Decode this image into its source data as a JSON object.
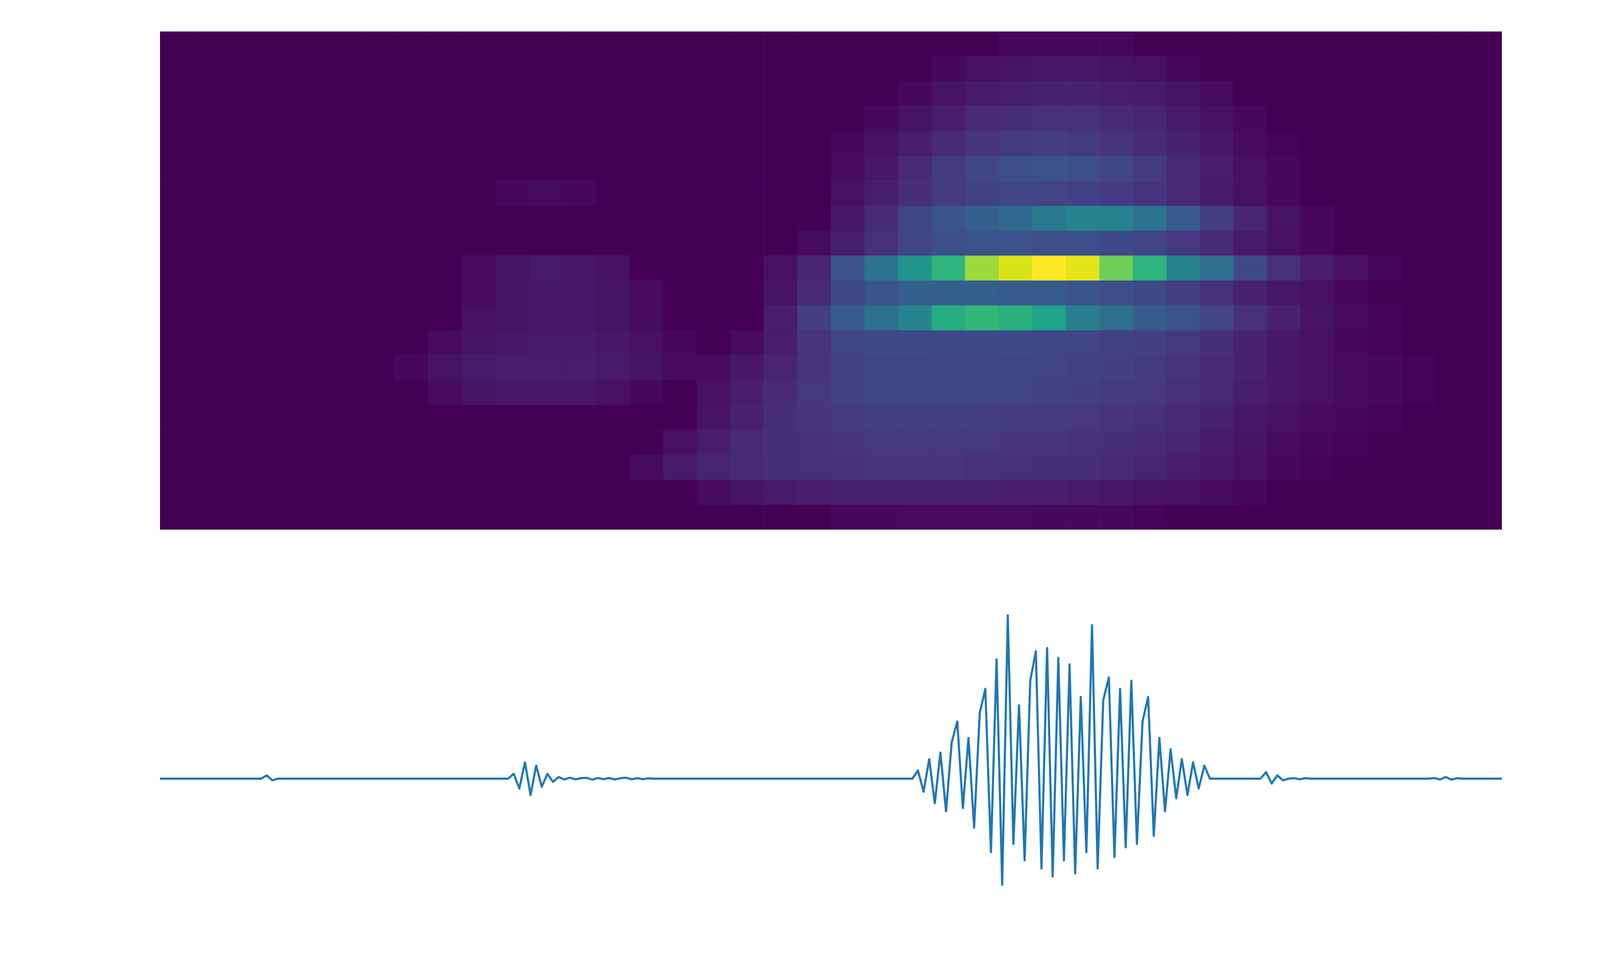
{
  "chart_data": [
    {
      "type": "heatmap",
      "tick_labels": false,
      "zlim": [
        0,
        100
      ],
      "z": [
        [
          0,
          0,
          0,
          0,
          0,
          0,
          0,
          0,
          0,
          0,
          0,
          0,
          0,
          0,
          0,
          0,
          0,
          0,
          0,
          0,
          0,
          0,
          0,
          0,
          0,
          2,
          2,
          2,
          2,
          0,
          0,
          0,
          0,
          0,
          0,
          0,
          0,
          0,
          0,
          0
        ],
        [
          0,
          0,
          0,
          0,
          0,
          0,
          0,
          0,
          0,
          0,
          0,
          0,
          0,
          0,
          0,
          0,
          0,
          0,
          0,
          0,
          0,
          0,
          0,
          2,
          4,
          5,
          6,
          6,
          5,
          4,
          2,
          0,
          0,
          0,
          0,
          0,
          0,
          0,
          0,
          0
        ],
        [
          0,
          0,
          0,
          0,
          0,
          0,
          0,
          0,
          0,
          0,
          0,
          0,
          0,
          0,
          0,
          0,
          0,
          0,
          0,
          0,
          0,
          0,
          2,
          5,
          7,
          8,
          9,
          9,
          8,
          7,
          5,
          3,
          0,
          0,
          0,
          0,
          0,
          0,
          0,
          0
        ],
        [
          0,
          0,
          0,
          0,
          0,
          0,
          0,
          0,
          0,
          0,
          0,
          0,
          0,
          0,
          0,
          0,
          0,
          0,
          0,
          0,
          0,
          2,
          5,
          8,
          11,
          13,
          14,
          14,
          12,
          10,
          7,
          4,
          2,
          0,
          0,
          0,
          0,
          0,
          0,
          0
        ],
        [
          0,
          0,
          0,
          0,
          0,
          0,
          0,
          0,
          0,
          0,
          0,
          0,
          0,
          0,
          0,
          0,
          0,
          0,
          0,
          0,
          2,
          4,
          8,
          12,
          15,
          17,
          18,
          17,
          15,
          12,
          9,
          6,
          3,
          1,
          0,
          0,
          0,
          0,
          0,
          0
        ],
        [
          0,
          0,
          0,
          0,
          0,
          0,
          0,
          0,
          0,
          0,
          0,
          0,
          0,
          0,
          0,
          0,
          0,
          0,
          0,
          0,
          3,
          6,
          12,
          17,
          21,
          24,
          25,
          24,
          21,
          17,
          12,
          8,
          4,
          2,
          0,
          0,
          0,
          0,
          0,
          0
        ],
        [
          0,
          0,
          0,
          0,
          0,
          0,
          0,
          0,
          0,
          0,
          2,
          3,
          2,
          0,
          0,
          0,
          0,
          0,
          0,
          0,
          4,
          8,
          13,
          17,
          19,
          20,
          20,
          19,
          17,
          15,
          11,
          7,
          4,
          2,
          0,
          0,
          0,
          0,
          0,
          0
        ],
        [
          0,
          0,
          0,
          0,
          0,
          0,
          0,
          0,
          0,
          0,
          0,
          0,
          0,
          0,
          0,
          0,
          0,
          0,
          0,
          0,
          6,
          12,
          20,
          26,
          30,
          34,
          40,
          45,
          44,
          38,
          28,
          18,
          10,
          5,
          2,
          0,
          0,
          0,
          0,
          0
        ],
        [
          0,
          0,
          0,
          0,
          0,
          0,
          0,
          0,
          0,
          0,
          0,
          0,
          0,
          0,
          0,
          0,
          0,
          0,
          0,
          3,
          8,
          14,
          20,
          24,
          25,
          25,
          24,
          24,
          22,
          20,
          16,
          11,
          7,
          4,
          2,
          0,
          0,
          0,
          0,
          0
        ],
        [
          0,
          0,
          0,
          0,
          0,
          0,
          0,
          0,
          0,
          3,
          5,
          7,
          6,
          4,
          0,
          0,
          0,
          0,
          4,
          10,
          25,
          38,
          52,
          65,
          85,
          94,
          100,
          96,
          78,
          65,
          45,
          35,
          22,
          14,
          8,
          4,
          2,
          0,
          0,
          0
        ],
        [
          0,
          0,
          0,
          0,
          0,
          0,
          0,
          0,
          0,
          3,
          5,
          6,
          6,
          5,
          3,
          0,
          0,
          0,
          5,
          12,
          20,
          26,
          30,
          30,
          30,
          28,
          28,
          26,
          24,
          22,
          18,
          14,
          9,
          6,
          4,
          2,
          0,
          0,
          0,
          0
        ],
        [
          0,
          0,
          0,
          0,
          0,
          0,
          0,
          0,
          0,
          4,
          5,
          6,
          6,
          5,
          3,
          0,
          0,
          0,
          8,
          18,
          28,
          36,
          45,
          62,
          66,
          64,
          58,
          42,
          36,
          28,
          25,
          20,
          14,
          9,
          5,
          3,
          1,
          0,
          0,
          0
        ],
        [
          0,
          0,
          0,
          0,
          0,
          0,
          0,
          0,
          3,
          5,
          6,
          7,
          7,
          6,
          4,
          2,
          0,
          3,
          8,
          15,
          20,
          22,
          22,
          22,
          22,
          22,
          21,
          20,
          19,
          18,
          16,
          13,
          9,
          6,
          4,
          2,
          1,
          0,
          0,
          0
        ],
        [
          0,
          0,
          0,
          0,
          0,
          0,
          0,
          2,
          5,
          7,
          8,
          8,
          8,
          7,
          5,
          3,
          3,
          6,
          10,
          15,
          19,
          20,
          20,
          21,
          21,
          20,
          20,
          19,
          18,
          17,
          15,
          12,
          9,
          6,
          4,
          3,
          2,
          1,
          0,
          0
        ],
        [
          0,
          0,
          0,
          0,
          0,
          0,
          0,
          0,
          3,
          5,
          6,
          6,
          6,
          4,
          2,
          0,
          4,
          8,
          12,
          16,
          19,
          20,
          20,
          20,
          20,
          20,
          19,
          18,
          17,
          16,
          14,
          11,
          8,
          6,
          4,
          3,
          2,
          1,
          0,
          0
        ],
        [
          0,
          0,
          0,
          0,
          0,
          0,
          0,
          0,
          0,
          0,
          0,
          0,
          0,
          0,
          0,
          0,
          5,
          9,
          13,
          15,
          17,
          18,
          18,
          18,
          18,
          17,
          17,
          16,
          15,
          14,
          12,
          9,
          6,
          4,
          3,
          2,
          1,
          0,
          0,
          0
        ],
        [
          0,
          0,
          0,
          0,
          0,
          0,
          0,
          0,
          0,
          0,
          0,
          0,
          0,
          0,
          0,
          4,
          8,
          11,
          13,
          14,
          15,
          16,
          16,
          16,
          16,
          15,
          15,
          14,
          13,
          12,
          10,
          7,
          5,
          3,
          2,
          1,
          0,
          0,
          0,
          0
        ],
        [
          0,
          0,
          0,
          0,
          0,
          0,
          0,
          0,
          0,
          0,
          0,
          0,
          0,
          0,
          3,
          7,
          10,
          12,
          13,
          14,
          14,
          15,
          15,
          15,
          14,
          14,
          13,
          13,
          12,
          10,
          8,
          6,
          4,
          2,
          1,
          0,
          0,
          0,
          0,
          0
        ],
        [
          0,
          0,
          0,
          0,
          0,
          0,
          0,
          0,
          0,
          0,
          0,
          0,
          0,
          0,
          0,
          0,
          3,
          5,
          7,
          8,
          9,
          9,
          9,
          9,
          9,
          8,
          8,
          7,
          6,
          5,
          4,
          3,
          2,
          0,
          0,
          0,
          0,
          0,
          0,
          0
        ],
        [
          0,
          0,
          0,
          0,
          0,
          0,
          0,
          0,
          0,
          0,
          0,
          0,
          0,
          0,
          0,
          0,
          0,
          0,
          0,
          0,
          2,
          2,
          3,
          3,
          3,
          3,
          2,
          2,
          2,
          1,
          0,
          0,
          0,
          0,
          0,
          0,
          0,
          0,
          0,
          0
        ]
      ]
    },
    {
      "type": "line",
      "tick_labels": false,
      "color": "#1f77b4",
      "xlim": [
        0,
        239
      ],
      "ylim": [
        -1.1,
        1.1
      ],
      "values": [
        0,
        0,
        0,
        0,
        0,
        0,
        0,
        0,
        0,
        0,
        0,
        0,
        0,
        0,
        0,
        0,
        0,
        0,
        0,
        0.02,
        -0.01,
        0,
        0,
        0,
        0,
        0,
        0,
        0,
        0,
        0,
        0,
        0,
        0,
        0,
        0,
        0,
        0,
        0,
        0,
        0,
        0,
        0,
        0,
        0,
        0,
        0,
        0,
        0,
        0,
        0,
        0,
        0,
        0,
        0,
        0,
        0,
        0,
        0,
        0,
        0,
        0,
        0,
        0,
        0.03,
        -0.06,
        0.1,
        -0.1,
        0.08,
        -0.05,
        0.03,
        -0.02,
        0.01,
        -0.005,
        0.006,
        -0.004,
        0.003,
        0.005,
        -0.006,
        0.004,
        -0.003,
        0.004,
        -0.005,
        0.003,
        0.006,
        -0.004,
        0.003,
        -0.003,
        0.002,
        0,
        0,
        0,
        0,
        0,
        0,
        0,
        0,
        0,
        0,
        0,
        0,
        0,
        0,
        0,
        0,
        0,
        0,
        0,
        0,
        0,
        0,
        0,
        0,
        0,
        0,
        0,
        0,
        0,
        0,
        0,
        0,
        0,
        0,
        0,
        0,
        0,
        0,
        0,
        0,
        0,
        0,
        0,
        0,
        0,
        0,
        0,
        0.05,
        -0.08,
        0.12,
        -0.15,
        0.16,
        -0.2,
        0.22,
        0.35,
        -0.18,
        0.25,
        -0.3,
        0.4,
        0.55,
        -0.45,
        0.73,
        -0.65,
        1.0,
        -0.4,
        0.45,
        -0.5,
        0.6,
        0.78,
        -0.55,
        0.8,
        -0.6,
        0.74,
        -0.5,
        0.7,
        -0.58,
        0.5,
        -0.45,
        0.94,
        -0.55,
        0.48,
        0.62,
        -0.48,
        0.55,
        -0.42,
        0.6,
        -0.4,
        0.35,
        0.5,
        -0.35,
        0.25,
        -0.2,
        0.18,
        -0.12,
        0.12,
        -0.1,
        0.1,
        -0.06,
        0.08,
        0,
        0,
        0,
        0,
        0,
        0,
        0,
        0,
        0,
        0,
        0.04,
        -0.03,
        0.02,
        -0.01,
        0,
        0.003,
        -0.004,
        0.003,
        0,
        0,
        0,
        0,
        0,
        0,
        0,
        0,
        0,
        0,
        0,
        0,
        0,
        0,
        0,
        0,
        0,
        0,
        0,
        0,
        0,
        0,
        0.004,
        -0.005,
        0.01,
        -0.006,
        0.003,
        0,
        0,
        0,
        0,
        0,
        0,
        0,
        0
      ]
    }
  ]
}
